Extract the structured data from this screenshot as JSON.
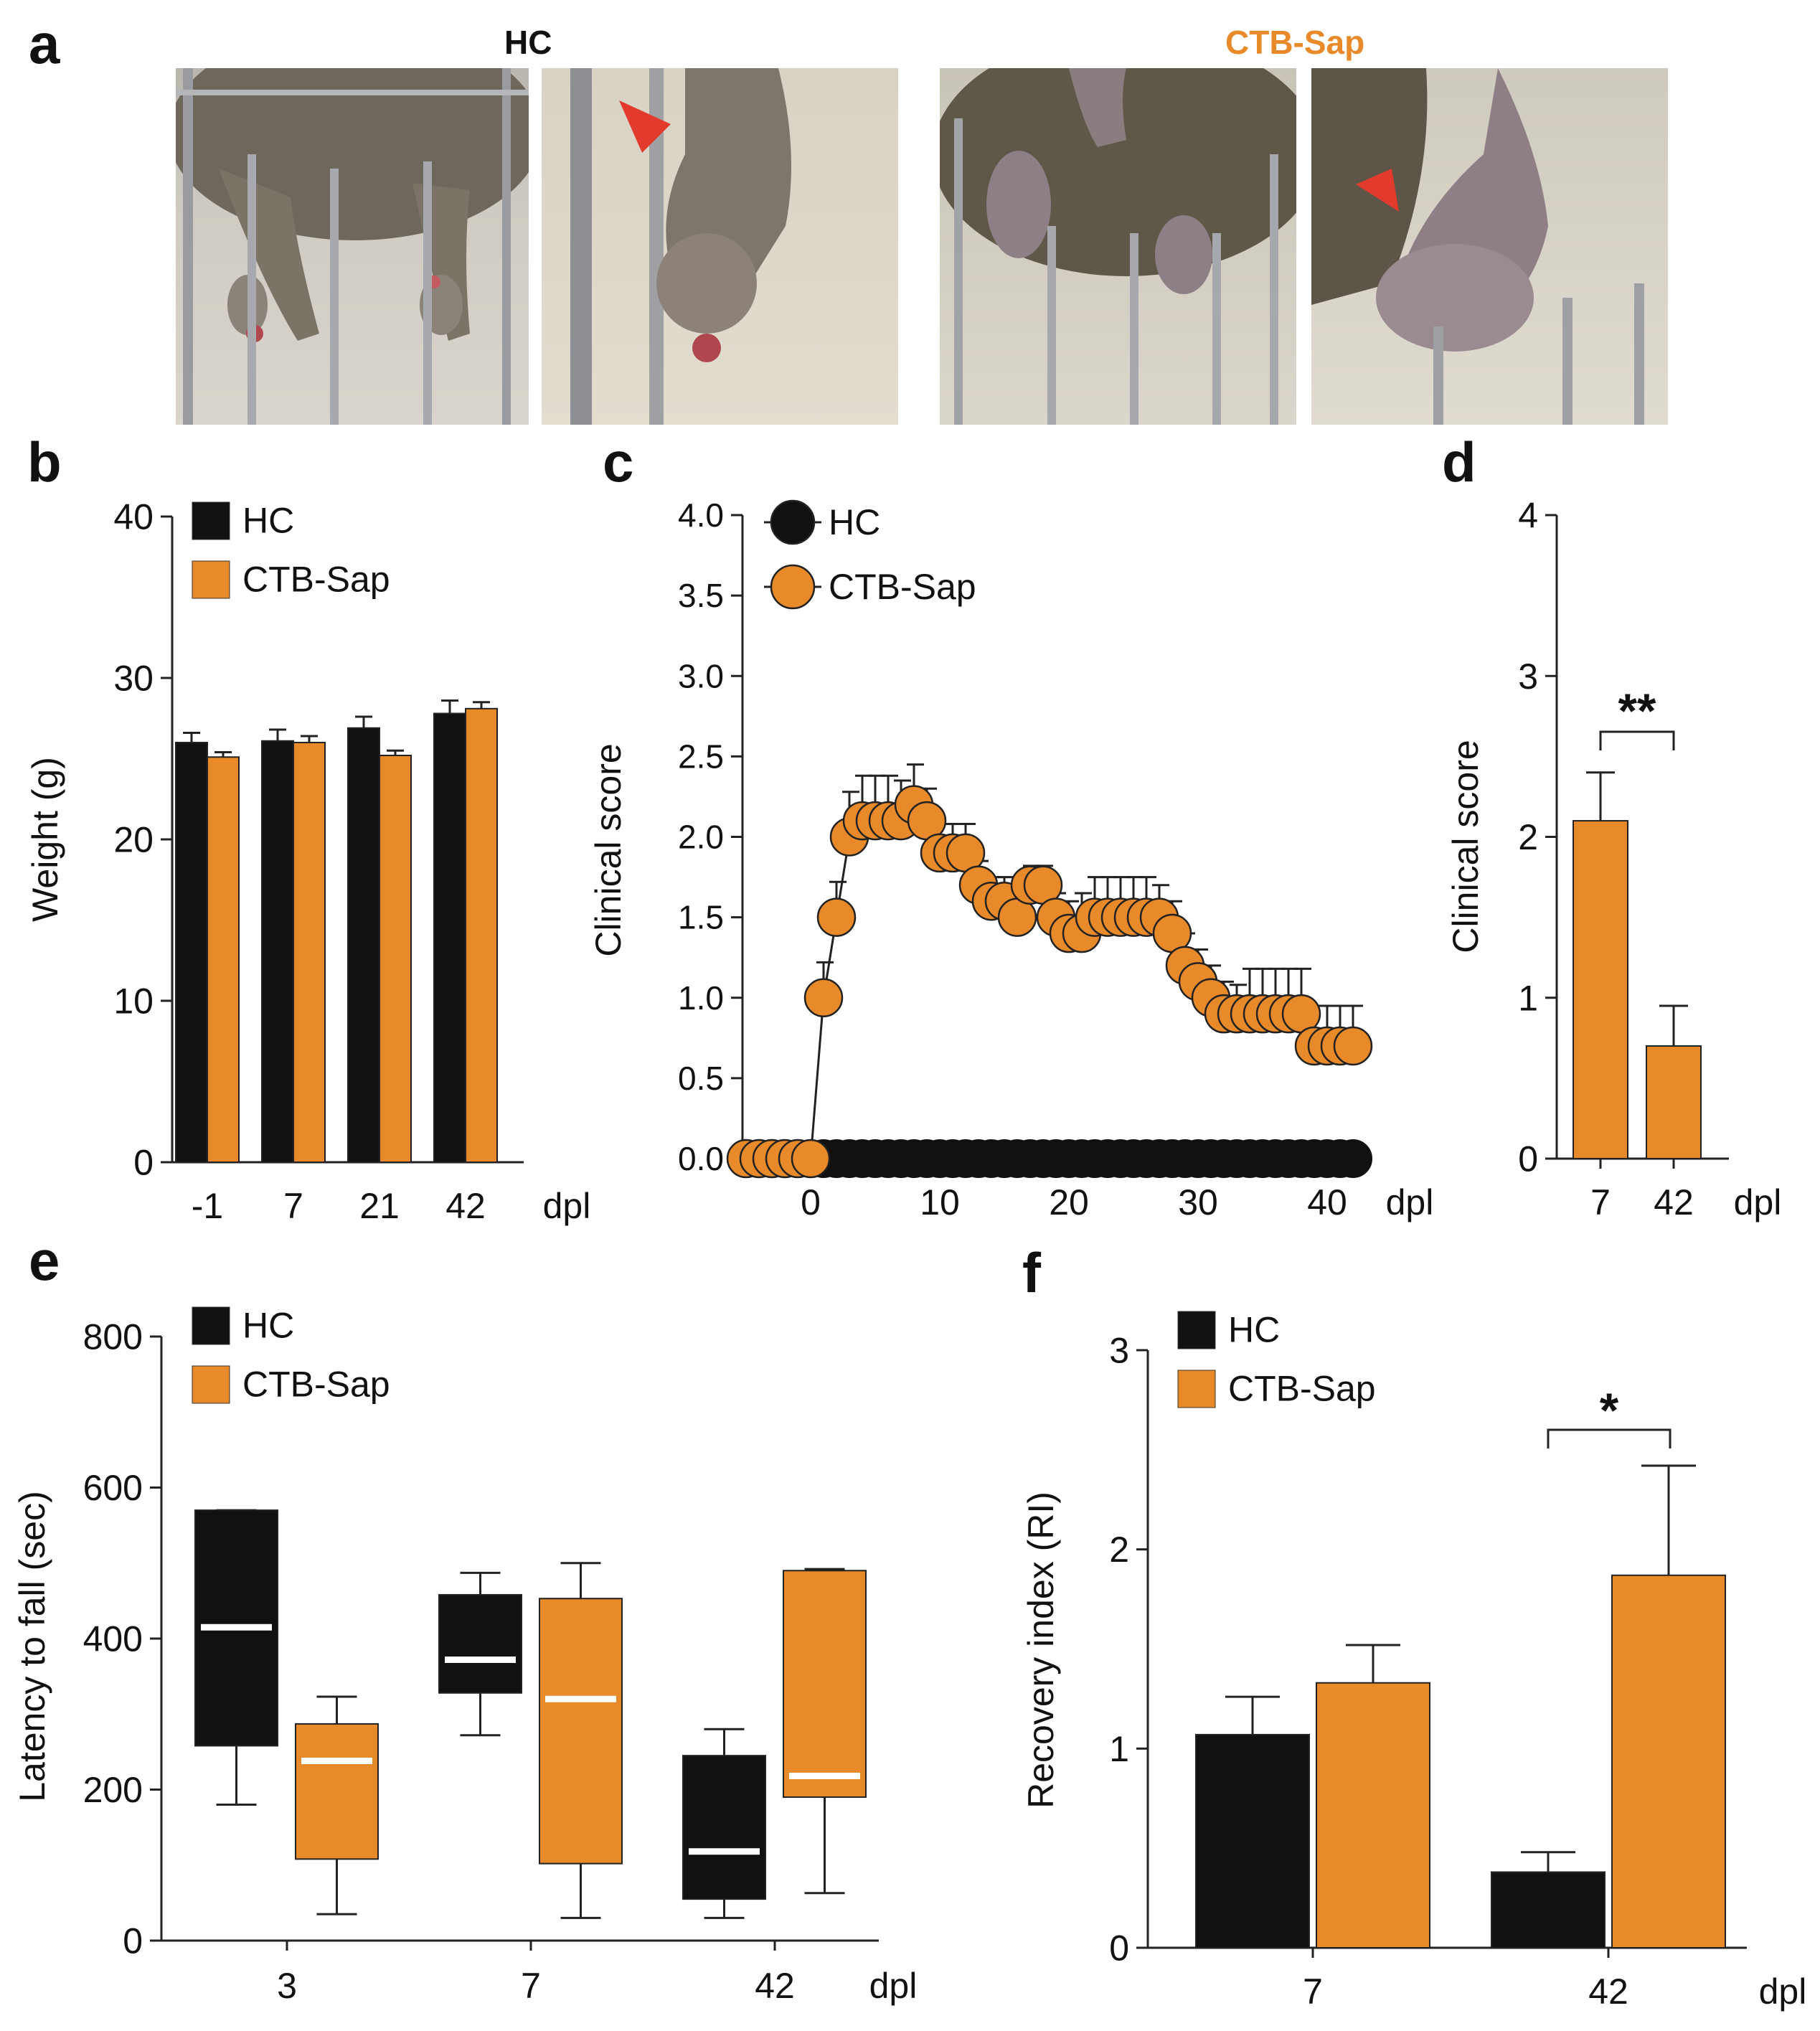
{
  "figure": {
    "panel_labels": {
      "a": "a",
      "b": "b",
      "c": "c",
      "d": "d",
      "e": "e",
      "f": "f"
    },
    "panel_a": {
      "group_labels": [
        "HC",
        "CTB-Sap"
      ],
      "group_colors": [
        "#111111",
        "#E8892A"
      ],
      "arrow_color": "#E23B2E"
    }
  },
  "colors": {
    "hc": "#111111",
    "ctb": "#E8892A",
    "axis": "#222222",
    "median": "#ffffff"
  },
  "chart_data": [
    {
      "id": "b",
      "type": "bar",
      "categories": [
        "-1",
        "7",
        "21",
        "42"
      ],
      "series": [
        {
          "name": "HC",
          "values": [
            26.0,
            26.1,
            26.9,
            27.8
          ],
          "errors": [
            0.6,
            0.7,
            0.7,
            0.8
          ]
        },
        {
          "name": "CTB-Sap",
          "values": [
            25.1,
            26.0,
            25.2,
            28.1
          ],
          "errors": [
            0.3,
            0.4,
            0.3,
            0.4
          ]
        }
      ],
      "ylabel": "Weight (g)",
      "xlabel": "dpl",
      "ylim": [
        0,
        40
      ],
      "yticks": [
        "0",
        "10",
        "20",
        "30",
        "40"
      ],
      "legend": [
        "HC",
        "CTB-Sap"
      ]
    },
    {
      "id": "c",
      "type": "line",
      "ylabel": "Clinical score",
      "xlabel": "dpl",
      "xlim": [
        -6,
        44
      ],
      "ylim": [
        0,
        4
      ],
      "xticks": [
        "0",
        "10",
        "20",
        "30",
        "40"
      ],
      "yticks": [
        "0.0",
        "0.5",
        "1.0",
        "1.5",
        "2.0",
        "2.5",
        "3.0",
        "3.5",
        "4.0"
      ],
      "legend": [
        "HC",
        "CTB-Sap"
      ],
      "series": [
        {
          "name": "HC",
          "x": [
            -5,
            -4,
            -3,
            -2,
            -1,
            0,
            1,
            2,
            3,
            4,
            5,
            6,
            7,
            8,
            9,
            10,
            11,
            12,
            13,
            14,
            15,
            16,
            17,
            18,
            19,
            20,
            21,
            22,
            23,
            24,
            25,
            26,
            27,
            28,
            29,
            30,
            31,
            32,
            33,
            34,
            35,
            36,
            37,
            38,
            39,
            40,
            41,
            42
          ],
          "values": [
            0,
            0,
            0,
            0,
            0,
            0,
            0,
            0,
            0,
            0,
            0,
            0,
            0,
            0,
            0,
            0,
            0,
            0,
            0,
            0,
            0,
            0,
            0,
            0,
            0,
            0,
            0,
            0,
            0,
            0,
            0,
            0,
            0,
            0,
            0,
            0,
            0,
            0,
            0,
            0,
            0,
            0,
            0,
            0,
            0,
            0,
            0,
            0
          ]
        },
        {
          "name": "CTB-Sap",
          "x": [
            -5,
            -4,
            -3,
            -2,
            -1,
            0,
            1,
            2,
            3,
            4,
            5,
            6,
            7,
            8,
            9,
            10,
            11,
            12,
            13,
            14,
            15,
            16,
            17,
            18,
            19,
            20,
            21,
            22,
            23,
            24,
            25,
            26,
            27,
            28,
            29,
            30,
            31,
            32,
            33,
            34,
            35,
            36,
            37,
            38,
            39,
            40,
            41,
            42
          ],
          "values": [
            0,
            0,
            0,
            0,
            0,
            0,
            1.0,
            1.5,
            2.0,
            2.1,
            2.1,
            2.1,
            2.1,
            2.2,
            2.1,
            1.9,
            1.9,
            1.9,
            1.7,
            1.6,
            1.6,
            1.5,
            1.7,
            1.7,
            1.5,
            1.4,
            1.4,
            1.5,
            1.5,
            1.5,
            1.5,
            1.5,
            1.5,
            1.4,
            1.2,
            1.1,
            1.0,
            0.9,
            0.9,
            0.9,
            0.9,
            0.9,
            0.9,
            0.9,
            0.7,
            0.7,
            0.7,
            0.7
          ],
          "errors": [
            0,
            0,
            0,
            0,
            0,
            0,
            0.22,
            0.22,
            0.28,
            0.28,
            0.28,
            0.28,
            0.25,
            0.25,
            0.2,
            0.18,
            0.18,
            0.18,
            0.15,
            0.15,
            0.15,
            0.12,
            0.12,
            0.12,
            0.15,
            0.2,
            0.25,
            0.25,
            0.25,
            0.25,
            0.25,
            0.25,
            0.2,
            0.2,
            0.2,
            0.2,
            0.2,
            0.2,
            0.18,
            0.28,
            0.28,
            0.28,
            0.28,
            0.28,
            0.25,
            0.25,
            0.25,
            0.25
          ]
        }
      ]
    },
    {
      "id": "d",
      "type": "bar",
      "categories": [
        "7",
        "42"
      ],
      "series": [
        {
          "name": "CTB-Sap",
          "values": [
            2.1,
            0.7
          ],
          "errors": [
            0.3,
            0.25
          ]
        }
      ],
      "ylabel": "Clinical score",
      "xlabel": "dpl",
      "ylim": [
        0,
        4
      ],
      "yticks": [
        "0",
        "1",
        "2",
        "3",
        "4"
      ],
      "significance": "**"
    },
    {
      "id": "e",
      "type": "box",
      "categories": [
        "3",
        "7",
        "42"
      ],
      "series": [
        {
          "name": "HC",
          "boxes": [
            {
              "min": 180,
              "q1": 258,
              "median": 415,
              "q3": 570,
              "max": 570
            },
            {
              "min": 272,
              "q1": 328,
              "median": 372,
              "q3": 458,
              "max": 487
            },
            {
              "min": 30,
              "q1": 55,
              "median": 118,
              "q3": 245,
              "max": 280
            }
          ]
        },
        {
          "name": "CTB-Sap",
          "boxes": [
            {
              "min": 35,
              "q1": 108,
              "median": 238,
              "q3": 287,
              "max": 323
            },
            {
              "min": 30,
              "q1": 102,
              "median": 320,
              "q3": 453,
              "max": 500
            },
            {
              "min": 63,
              "q1": 190,
              "median": 218,
              "q3": 490,
              "max": 492
            }
          ]
        }
      ],
      "ylabel": "Latency to fall (sec)",
      "xlabel": "dpl",
      "ylim": [
        0,
        800
      ],
      "yticks": [
        "0",
        "200",
        "400",
        "600",
        "800"
      ],
      "legend": [
        "HC",
        "CTB-Sap"
      ]
    },
    {
      "id": "f",
      "type": "bar",
      "categories": [
        "7",
        "42"
      ],
      "series": [
        {
          "name": "HC",
          "values": [
            1.07,
            0.38
          ],
          "errors": [
            0.19,
            0.1
          ]
        },
        {
          "name": "CTB-Sap",
          "values": [
            1.33,
            1.87
          ],
          "errors": [
            0.19,
            0.55
          ]
        }
      ],
      "ylabel": "Recovery index (RI)",
      "xlabel": "dpl",
      "ylim": [
        0,
        3
      ],
      "yticks": [
        "0",
        "1",
        "2",
        "3"
      ],
      "legend": [
        "HC",
        "CTB-Sap"
      ],
      "significance": "*"
    }
  ]
}
